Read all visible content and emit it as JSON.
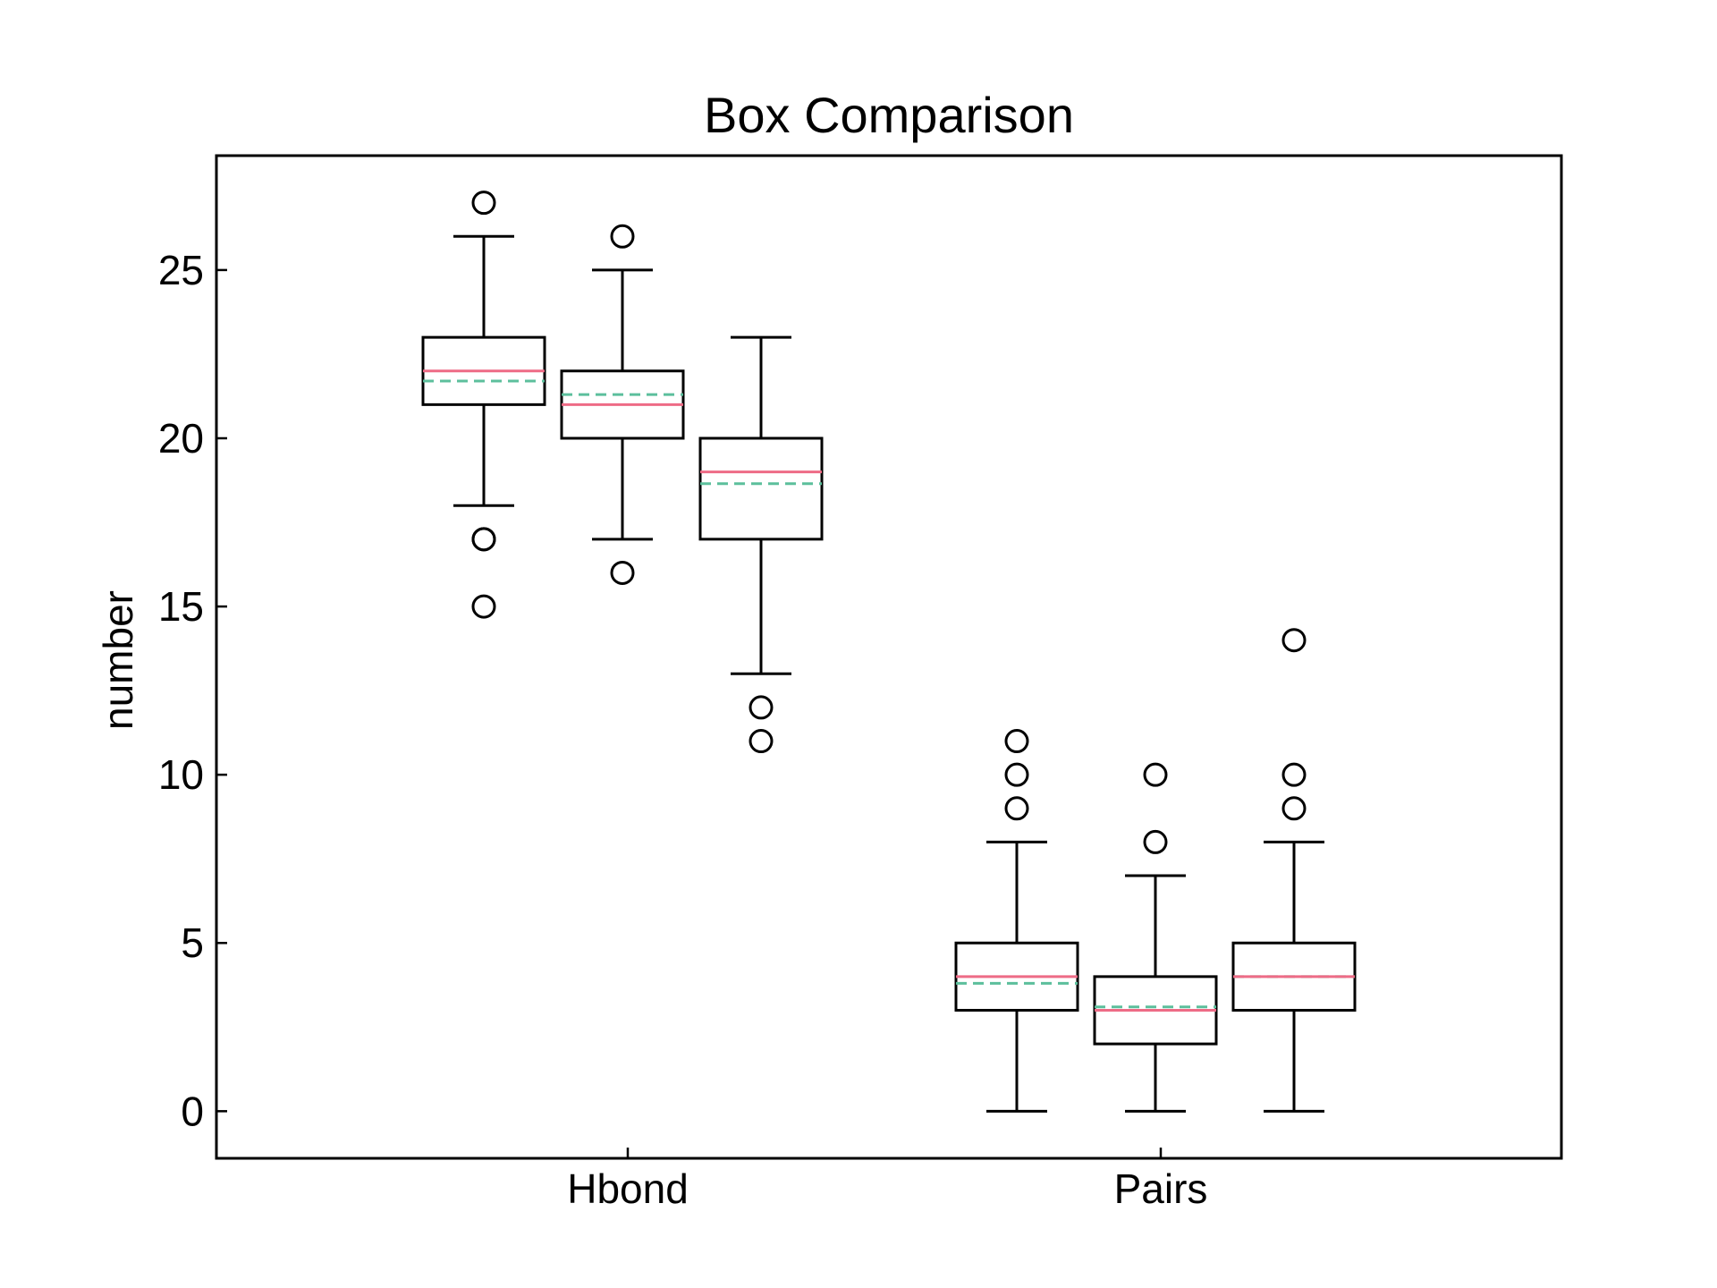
{
  "chart_data": {
    "type": "box",
    "title": "Box Comparison",
    "xlabel": "",
    "ylabel": "number",
    "ylim": [
      -1.4,
      28.4
    ],
    "yticks": [
      "0",
      "5",
      "10",
      "15",
      "20",
      "25"
    ],
    "categories": [
      "Hbond",
      "Pairs"
    ],
    "grid": false,
    "legend": "none",
    "colors": {
      "box": "#000000",
      "median": "#ee6b86",
      "mean": "#5cbf9c"
    },
    "boxes": [
      {
        "category": "Hbond",
        "q1": 21,
        "median": 22,
        "mean": 21.7,
        "q3": 23,
        "whisker_low": 18,
        "whisker_high": 26,
        "outliers": [
          27,
          17,
          17,
          15
        ]
      },
      {
        "category": "Hbond",
        "q1": 20,
        "median": 21,
        "mean": 21.3,
        "q3": 22,
        "whisker_low": 17,
        "whisker_high": 25,
        "outliers": [
          26,
          16
        ]
      },
      {
        "category": "Hbond",
        "q1": 17,
        "median": 19,
        "mean": 18.65,
        "q3": 20,
        "whisker_low": 13,
        "whisker_high": 23,
        "outliers": [
          12,
          11
        ]
      },
      {
        "category": "Pairs",
        "q1": 3,
        "median": 4,
        "mean": 3.8,
        "q3": 5,
        "whisker_low": 0,
        "whisker_high": 8,
        "outliers": [
          11,
          10,
          9
        ]
      },
      {
        "category": "Pairs",
        "q1": 2,
        "median": 3,
        "mean": 3.1,
        "q3": 4,
        "whisker_low": 0,
        "whisker_high": 7,
        "outliers": [
          10,
          8
        ]
      },
      {
        "category": "Pairs",
        "q1": 3,
        "median": 4,
        "mean": 4.0,
        "q3": 5,
        "whisker_low": 0,
        "whisker_high": 8,
        "outliers": [
          14,
          10,
          9
        ]
      }
    ]
  }
}
